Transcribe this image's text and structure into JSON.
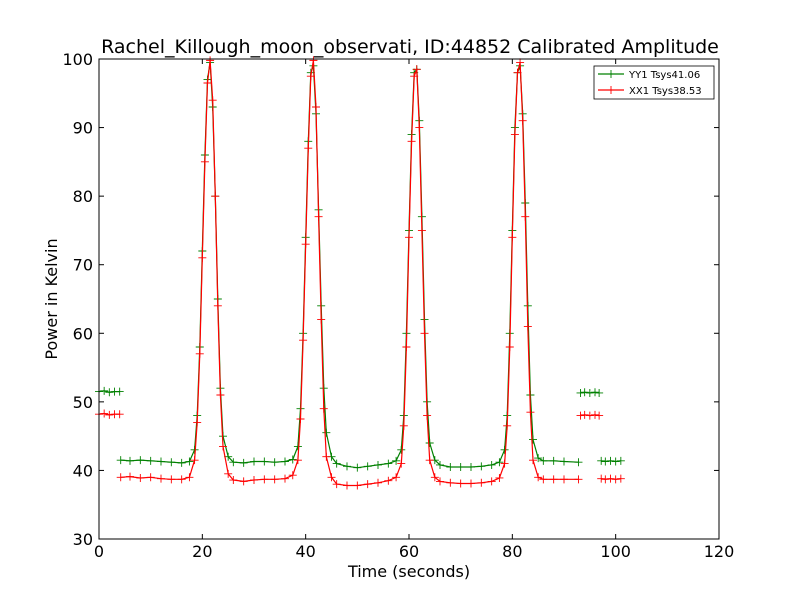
{
  "chart_data": {
    "type": "line",
    "title": "Rachel_Killough_moon_observati, ID:44852 Calibrated Amplitude",
    "xlabel": "Time (seconds)",
    "ylabel": "Power in Kelvin",
    "xlim": [
      0,
      120
    ],
    "ylim": [
      30,
      100
    ],
    "xticks": [
      0,
      20,
      40,
      60,
      80,
      100,
      120
    ],
    "yticks": [
      30,
      40,
      50,
      60,
      70,
      80,
      90,
      100
    ],
    "grid": false,
    "legend_position": "top-right",
    "series": [
      {
        "name": "YY1 Tsys41.06",
        "color": "#008000",
        "marker": "+",
        "segments": [
          {
            "x": [
              0.0,
              1.0,
              2.0,
              3.0,
              4.0
            ],
            "y": [
              51.5,
              51.6,
              51.4,
              51.5,
              51.5
            ]
          },
          {
            "x": [
              4.2,
              6.0,
              8.0,
              10.0,
              12.0,
              14.0,
              16.0,
              17.5,
              18.5,
              19.0,
              19.5,
              20.0,
              20.5,
              21.0,
              21.5,
              22.0,
              22.5,
              23.0,
              23.5,
              24.0,
              25.0,
              26.0,
              28.0,
              30.0,
              32.0,
              34.0,
              36.0,
              37.5,
              38.5,
              39.0,
              39.5,
              40.0,
              40.5,
              41.0,
              41.5,
              42.0,
              42.5,
              43.0,
              43.5,
              44.0,
              45.0,
              46.0,
              48.0,
              50.0,
              52.0,
              54.0,
              56.0,
              57.5,
              58.5,
              59.0,
              59.5,
              60.0,
              60.5,
              61.0,
              61.5,
              62.0,
              62.5,
              63.0,
              63.5,
              64.0,
              65.0,
              66.0,
              68.0,
              70.0,
              72.0,
              74.0,
              76.0,
              77.5,
              78.5,
              79.0,
              79.5,
              80.0,
              80.5,
              81.0,
              81.5,
              82.0,
              82.5,
              83.0,
              83.5,
              84.0,
              85.0,
              86.0,
              88.0,
              90.0,
              92.8
            ],
            "y": [
              41.5,
              41.4,
              41.5,
              41.4,
              41.3,
              41.2,
              41.1,
              41.3,
              43.0,
              48.0,
              58.0,
              72.0,
              86.0,
              97.0,
              99.5,
              93.0,
              80.0,
              65.0,
              52.0,
              45.0,
              42.0,
              41.2,
              41.1,
              41.3,
              41.3,
              41.2,
              41.3,
              41.6,
              43.5,
              49.0,
              60.0,
              74.0,
              88.0,
              98.0,
              99.0,
              92.0,
              78.0,
              64.0,
              52.0,
              45.5,
              42.0,
              41.0,
              40.6,
              40.4,
              40.6,
              40.8,
              41.0,
              41.4,
              43.0,
              48.0,
              60.0,
              75.0,
              89.0,
              98.0,
              98.5,
              91.0,
              77.0,
              62.0,
              50.0,
              44.0,
              41.5,
              40.8,
              40.5,
              40.5,
              40.5,
              40.6,
              40.8,
              41.2,
              43.0,
              48.0,
              60.0,
              75.0,
              90.0,
              98.0,
              99.0,
              92.0,
              79.0,
              64.0,
              51.0,
              44.5,
              41.8,
              41.4,
              41.4,
              41.3,
              41.2
            ]
          },
          {
            "x": [
              93.2,
              94.0,
              95.0,
              96.0,
              96.8
            ],
            "y": [
              51.3,
              51.4,
              51.3,
              51.4,
              51.3
            ]
          },
          {
            "x": [
              97.2,
              98.0,
              99.0,
              100.0,
              101.0
            ],
            "y": [
              41.4,
              41.3,
              41.4,
              41.3,
              41.4
            ]
          }
        ]
      },
      {
        "name": "XX1 Tsys38.53",
        "color": "#ff0000",
        "marker": "+",
        "segments": [
          {
            "x": [
              0.0,
              1.0,
              2.0,
              3.0,
              4.0
            ],
            "y": [
              48.2,
              48.3,
              48.1,
              48.2,
              48.2
            ]
          },
          {
            "x": [
              4.2,
              6.0,
              8.0,
              10.0,
              12.0,
              14.0,
              16.0,
              17.5,
              18.5,
              19.0,
              19.5,
              20.0,
              20.5,
              21.0,
              21.5,
              22.0,
              22.5,
              23.0,
              23.5,
              24.0,
              25.0,
              26.0,
              28.0,
              30.0,
              32.0,
              34.0,
              36.0,
              37.5,
              38.5,
              39.0,
              39.5,
              40.0,
              40.5,
              41.0,
              41.5,
              42.0,
              42.5,
              43.0,
              43.5,
              44.0,
              45.0,
              46.0,
              48.0,
              50.0,
              52.0,
              54.0,
              56.0,
              57.5,
              58.5,
              59.0,
              59.5,
              60.0,
              60.5,
              61.0,
              61.5,
              62.0,
              62.5,
              63.0,
              63.5,
              64.0,
              65.0,
              66.0,
              68.0,
              70.0,
              72.0,
              74.0,
              76.0,
              77.5,
              78.5,
              79.0,
              79.5,
              80.0,
              80.5,
              81.0,
              81.5,
              82.0,
              82.5,
              83.0,
              83.5,
              84.0,
              85.0,
              86.0,
              88.0,
              90.0,
              92.8
            ],
            "y": [
              39.0,
              39.1,
              38.9,
              39.0,
              38.8,
              38.7,
              38.7,
              39.0,
              41.5,
              47.0,
              57.0,
              71.0,
              85.0,
              96.5,
              99.8,
              94.0,
              80.0,
              64.0,
              51.0,
              43.5,
              39.5,
              38.6,
              38.4,
              38.6,
              38.7,
              38.7,
              38.8,
              39.3,
              41.5,
              47.5,
              59.0,
              73.0,
              87.0,
              97.5,
              99.8,
              93.0,
              77.0,
              62.0,
              49.0,
              42.0,
              39.0,
              38.0,
              37.8,
              37.8,
              38.0,
              38.2,
              38.5,
              39.0,
              41.0,
              46.5,
              58.0,
              74.0,
              88.0,
              97.5,
              98.5,
              90.0,
              75.0,
              60.0,
              48.0,
              41.5,
              39.0,
              38.4,
              38.2,
              38.1,
              38.1,
              38.2,
              38.4,
              38.9,
              41.0,
              46.5,
              58.0,
              74.0,
              89.0,
              98.0,
              99.5,
              91.0,
              77.0,
              61.0,
              48.5,
              41.5,
              39.0,
              38.7,
              38.7,
              38.7,
              38.7
            ]
          },
          {
            "x": [
              93.2,
              94.0,
              95.0,
              96.0,
              96.8
            ],
            "y": [
              48.0,
              48.1,
              48.0,
              48.1,
              48.0
            ]
          },
          {
            "x": [
              97.2,
              98.0,
              99.0,
              100.0,
              101.0
            ],
            "y": [
              38.8,
              38.7,
              38.8,
              38.7,
              38.8
            ]
          }
        ]
      }
    ]
  }
}
